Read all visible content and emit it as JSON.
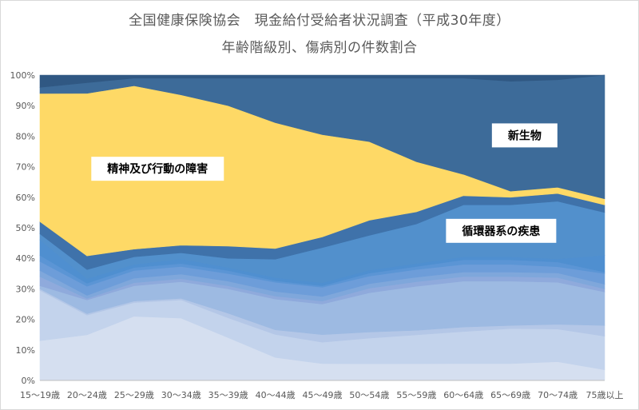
{
  "chart_data": {
    "type": "area",
    "stacked": "percent",
    "title": "全国健康保険協会　現金給付受給者状況調査（平成30年度）",
    "subtitle": "年齢階級別、傷病別の件数割合",
    "ylim": [
      0,
      100
    ],
    "y_ticks": [
      "0%",
      "10%",
      "20%",
      "30%",
      "40%",
      "50%",
      "60%",
      "70%",
      "80%",
      "90%",
      "100%"
    ],
    "categories": [
      "15〜19歳",
      "20〜24歳",
      "25〜29歳",
      "30〜34歳",
      "35〜39歳",
      "40〜44歳",
      "45〜49歳",
      "50〜54歳",
      "55〜59歳",
      "60〜64歳",
      "65〜69歳",
      "70〜74歳",
      "75歳以上"
    ],
    "series": [
      {
        "name": "",
        "color": "#d5dff0",
        "values": [
          13,
          15,
          21,
          20.5,
          14,
          7.5,
          5.5,
          5.5,
          5.5,
          5.5,
          5.5,
          6,
          3.5
        ]
      },
      {
        "name": "",
        "color": "#c3d3ec",
        "values": [
          16.5,
          6.5,
          4.5,
          6,
          6.5,
          7.5,
          7,
          8.5,
          9.5,
          10.5,
          11.5,
          10.5,
          11
        ]
      },
      {
        "name": "",
        "color": "#b4c7e7",
        "values": [
          0.5,
          0.5,
          0.5,
          0.5,
          1.5,
          1.5,
          2.5,
          2,
          1.5,
          1.5,
          1,
          1.5,
          3.5
        ]
      },
      {
        "name": "",
        "color": "#9dbae2",
        "values": [
          1,
          4.5,
          5,
          5.5,
          8,
          10,
          10,
          13,
          14.5,
          15,
          14.5,
          13.5,
          11
        ]
      },
      {
        "name": "",
        "color": "#8faadc",
        "values": [
          3,
          0.5,
          1,
          1,
          1,
          1,
          1,
          1.5,
          1.5,
          1.5,
          1.5,
          1.5,
          1
        ]
      },
      {
        "name": "",
        "color": "#7fa7db",
        "values": [
          2,
          1,
          1.5,
          1.5,
          1.5,
          1.5,
          1.5,
          1.5,
          1.5,
          1.5,
          1.5,
          1.5,
          1.5
        ]
      },
      {
        "name": "",
        "color": "#6d9dd9",
        "values": [
          3,
          3,
          2.5,
          2.5,
          2.5,
          3,
          3,
          2.5,
          2.5,
          2.5,
          2.5,
          2,
          3.5
        ]
      },
      {
        "name": "",
        "color": "#5b95d5",
        "values": [
          2,
          1,
          1,
          1,
          1,
          0.5,
          0.5,
          1,
          1,
          1.5,
          1.5,
          1.5,
          0.5
        ]
      },
      {
        "name": "",
        "color": "#4f8fd0",
        "values": [
          5,
          1.5,
          1,
          1.5,
          1,
          1,
          1,
          1,
          1,
          1,
          1,
          1,
          5.5
        ]
      },
      {
        "name": "循環器系の疾患",
        "color": "#5290cc",
        "values": [
          2,
          3,
          2.5,
          2,
          3,
          6,
          11.5,
          11.5,
          13,
          17,
          17,
          18.5,
          14
        ]
      },
      {
        "name": "",
        "color": "#3f72aa",
        "values": [
          4,
          4.5,
          2.5,
          2.5,
          4,
          3.5,
          3.5,
          5,
          4,
          3,
          2.5,
          2.5,
          2.5
        ]
      },
      {
        "name": "精神及び行動の障害",
        "color": "#fed966",
        "values": [
          42,
          53.5,
          53.5,
          49.5,
          46,
          41,
          33.5,
          26,
          16.5,
          7,
          2,
          2,
          2
        ]
      },
      {
        "name": "新生物",
        "color": "#3d6b99",
        "values": [
          2,
          3.5,
          2.5,
          5.5,
          9,
          14.5,
          18.5,
          21,
          27.5,
          31.5,
          36,
          34.5,
          40.5
        ]
      },
      {
        "name": "",
        "color": "#305883",
        "values": [
          4,
          2.5,
          1,
          1,
          1,
          1,
          1,
          1,
          1,
          1,
          2,
          1.5,
          0
        ]
      }
    ],
    "annotations": [
      {
        "text": "精神及び行動の障害",
        "series": "精神及び行動の障害"
      },
      {
        "text": "新生物",
        "series": "新生物"
      },
      {
        "text": "循環器系の疾患",
        "series": "循環器系の疾患"
      }
    ],
    "grid": false,
    "legend": "none"
  }
}
